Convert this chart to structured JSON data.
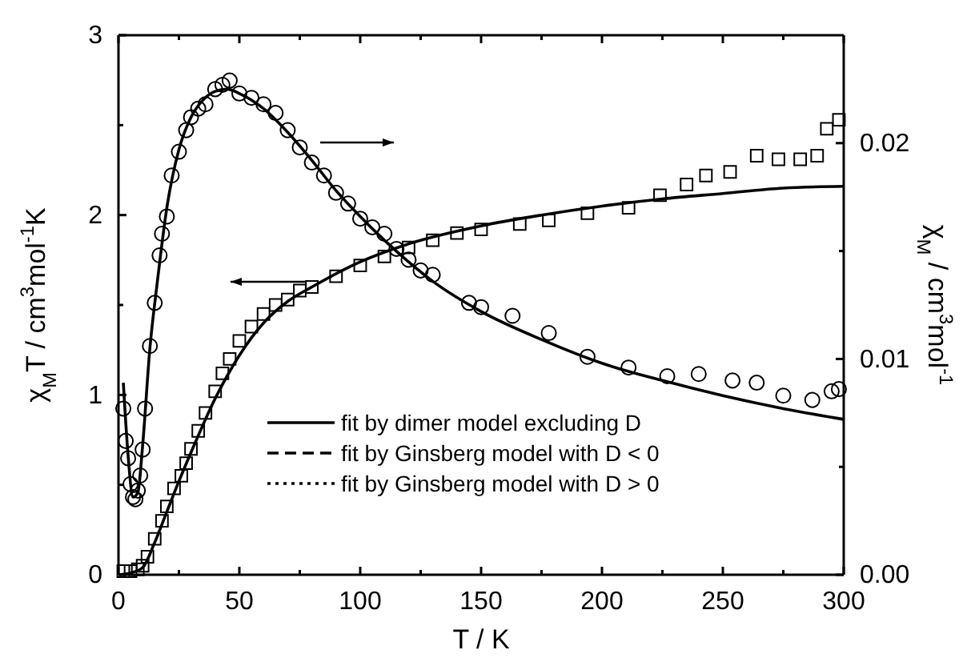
{
  "chart_data": {
    "type": "scatter",
    "xlabel": "T / K",
    "ylabel": "χ$_{M}$T / cm$^{3}$mol$^{-1}$K",
    "y2label": "χ$_{M}$ / cm$^{3}$mol$^{-1}$",
    "xlim": [
      0,
      300
    ],
    "xticks": [
      0,
      {
        "value": 25,
        "label": null
      },
      50,
      {
        "value": 75,
        "label": null
      },
      100,
      {
        "value": 125,
        "label": null
      },
      150,
      {
        "value": 175,
        "label": null
      },
      200,
      {
        "value": 225,
        "label": null
      },
      250,
      {
        "value": 275,
        "label": null
      },
      300
    ],
    "ylim": [
      0,
      3
    ],
    "yticks": [
      0,
      {
        "value": 0.5,
        "label": null
      },
      1,
      {
        "value": 1.5,
        "label": null
      },
      2,
      {
        "value": 2.5,
        "label": null
      },
      3
    ],
    "y2lim": [
      0,
      0.025
    ],
    "y2ticks": [
      {
        "value": 0,
        "label": "0.00"
      },
      {
        "value": 0.005,
        "label": null
      },
      {
        "value": 0.01,
        "label": "0.01"
      },
      {
        "value": 0.015,
        "label": null
      },
      {
        "value": 0.02,
        "label": "0.02"
      }
    ],
    "legend": "bottom right",
    "series": [
      {
        "type": "scatter",
        "marker": "square",
        "color": "#000000",
        "x": [
          2,
          5,
          8,
          10,
          12,
          15,
          18,
          20,
          23,
          26,
          28,
          30,
          33,
          36,
          40,
          43,
          46,
          50,
          55,
          60,
          65,
          70,
          75,
          80,
          90,
          100,
          110,
          120,
          130,
          140,
          150,
          166,
          178,
          194,
          211,
          224,
          235,
          243,
          253,
          264,
          273,
          282,
          289,
          293,
          298
        ],
        "values": [
          0.02,
          0.02,
          0.03,
          0.05,
          0.1,
          0.2,
          0.3,
          0.38,
          0.48,
          0.55,
          0.62,
          0.7,
          0.8,
          0.9,
          1.02,
          1.12,
          1.2,
          1.3,
          1.38,
          1.45,
          1.5,
          1.53,
          1.58,
          1.6,
          1.66,
          1.72,
          1.77,
          1.82,
          1.86,
          1.9,
          1.92,
          1.95,
          1.97,
          2.01,
          2.04,
          2.11,
          2.17,
          2.22,
          2.24,
          2.33,
          2.31,
          2.31,
          2.33,
          2.48,
          2.53
        ]
      },
      {
        "type": "scatter",
        "marker": "circle",
        "axis": "y2",
        "color": "#000000",
        "x": [
          2,
          3,
          4,
          5,
          6,
          7,
          8,
          9,
          10,
          11,
          13,
          15,
          17,
          18,
          20,
          22,
          25,
          28,
          30,
          33,
          36,
          40,
          43,
          46,
          50,
          55,
          60,
          65,
          70,
          75,
          80,
          85,
          90,
          95,
          100,
          105,
          110,
          115,
          120,
          125,
          130,
          145,
          150,
          163,
          178,
          194,
          211,
          227,
          240,
          254,
          264,
          275,
          287,
          295,
          298
        ],
        "values": [
          0.0077,
          0.0062,
          0.0054,
          0.0042,
          0.0036,
          0.0035,
          0.0039,
          0.0046,
          0.0058,
          0.0077,
          0.0106,
          0.0126,
          0.0148,
          0.0158,
          0.0166,
          0.0185,
          0.0196,
          0.0206,
          0.0212,
          0.0216,
          0.0218,
          0.0225,
          0.0227,
          0.0229,
          0.0223,
          0.0221,
          0.0218,
          0.0214,
          0.0206,
          0.0198,
          0.0191,
          0.0185,
          0.0177,
          0.0172,
          0.0165,
          0.0161,
          0.0158,
          0.0151,
          0.0146,
          0.0141,
          0.0139,
          0.0126,
          0.0124,
          0.012,
          0.0112,
          0.0101,
          0.0096,
          0.0092,
          0.0093,
          0.009,
          0.0089,
          0.0083,
          0.0081,
          0.0085,
          0.0086
        ]
      },
      {
        "type": "line",
        "name": "fit by dimer model excluding D",
        "line_style": "solid",
        "color": "#000000",
        "x": [
          0,
          5,
          10,
          15,
          20,
          25,
          30,
          40,
          50,
          60,
          70,
          80,
          100,
          120,
          150,
          175,
          200,
          225,
          250,
          275,
          300
        ],
        "values": [
          0,
          0.01,
          0.04,
          0.18,
          0.35,
          0.52,
          0.68,
          0.98,
          1.22,
          1.4,
          1.52,
          1.6,
          1.74,
          1.84,
          1.94,
          2.0,
          2.05,
          2.09,
          2.12,
          2.15,
          2.16
        ]
      },
      {
        "type": "line",
        "name": "fit by Ginsberg model with D < 0",
        "line_style": "dashed",
        "color": "#000000"
      },
      {
        "type": "line",
        "name": "fit by Ginsberg model with D > 0",
        "line_style": "dotted",
        "color": "#000000"
      },
      {
        "type": "line",
        "axis": "y2",
        "line_style": "solid",
        "color": "#000000",
        "x": [
          2,
          4,
          6,
          8,
          10,
          13,
          16,
          20,
          25,
          30,
          35,
          40,
          45,
          50,
          60,
          70,
          80,
          90,
          100,
          110,
          120,
          130,
          150,
          175,
          200,
          225,
          250,
          275,
          300
        ],
        "values": [
          0.0089,
          0.0055,
          0.0036,
          0.0038,
          0.006,
          0.0105,
          0.0135,
          0.017,
          0.0197,
          0.0212,
          0.022,
          0.0224,
          0.0225,
          0.0223,
          0.0216,
          0.0205,
          0.0192,
          0.0178,
          0.0166,
          0.0155,
          0.0145,
          0.0136,
          0.0122,
          0.0109,
          0.0098,
          0.009,
          0.0083,
          0.0077,
          0.0072
        ]
      }
    ]
  }
}
